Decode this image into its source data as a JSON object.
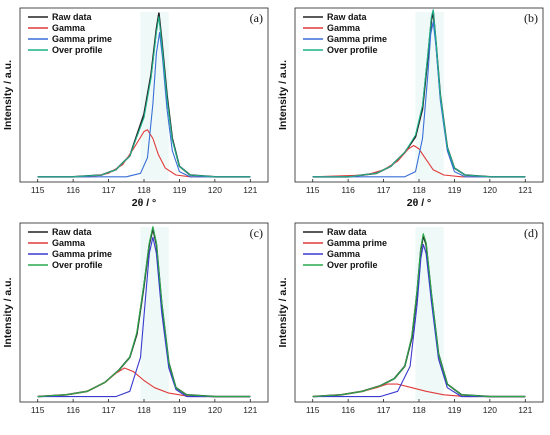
{
  "chart_data": [
    {
      "type": "line",
      "panel_label": "(a)",
      "xlabel": "2θ / °",
      "ylabel": "Intensity / a.u.",
      "xlim": [
        114.5,
        121.5
      ],
      "xticks": [
        "115",
        "116",
        "117",
        "118",
        "119",
        "120",
        "121"
      ],
      "legend_placement": "top-left",
      "series": [
        {
          "name": "Raw data",
          "color": "#222222",
          "points": [
            [
              115,
              0.03
            ],
            [
              116,
              0.03
            ],
            [
              116.8,
              0.04
            ],
            [
              117.2,
              0.07
            ],
            [
              117.6,
              0.15
            ],
            [
              118.0,
              0.39
            ],
            [
              118.2,
              0.62
            ],
            [
              118.35,
              0.88
            ],
            [
              118.42,
              0.97
            ],
            [
              118.5,
              0.82
            ],
            [
              118.65,
              0.5
            ],
            [
              118.8,
              0.25
            ],
            [
              119.0,
              0.09
            ],
            [
              119.3,
              0.04
            ],
            [
              120,
              0.03
            ],
            [
              121,
              0.03
            ]
          ]
        },
        {
          "name": "Gamma",
          "color": "#e03a3a",
          "points": [
            [
              115,
              0.03
            ],
            [
              116.5,
              0.03
            ],
            [
              117.0,
              0.05
            ],
            [
              117.4,
              0.1
            ],
            [
              117.7,
              0.19
            ],
            [
              118.0,
              0.29
            ],
            [
              118.1,
              0.3
            ],
            [
              118.25,
              0.25
            ],
            [
              118.4,
              0.16
            ],
            [
              118.6,
              0.08
            ],
            [
              118.9,
              0.04
            ],
            [
              119.3,
              0.03
            ],
            [
              121,
              0.03
            ]
          ]
        },
        {
          "name": "Gamma prime",
          "color": "#3a6fd8",
          "points": [
            [
              115,
              0.03
            ],
            [
              117.5,
              0.03
            ],
            [
              117.9,
              0.05
            ],
            [
              118.1,
              0.14
            ],
            [
              118.25,
              0.45
            ],
            [
              118.35,
              0.74
            ],
            [
              118.44,
              0.86
            ],
            [
              118.52,
              0.72
            ],
            [
              118.65,
              0.42
            ],
            [
              118.8,
              0.18
            ],
            [
              119.0,
              0.06
            ],
            [
              119.3,
              0.03
            ],
            [
              121,
              0.03
            ]
          ]
        },
        {
          "name": "Over profile",
          "color": "#1fb08a",
          "points": [
            [
              115,
              0.03
            ],
            [
              116,
              0.03
            ],
            [
              116.8,
              0.04
            ],
            [
              117.2,
              0.07
            ],
            [
              117.6,
              0.15
            ],
            [
              118.0,
              0.37
            ],
            [
              118.2,
              0.6
            ],
            [
              118.35,
              0.86
            ],
            [
              118.42,
              0.95
            ],
            [
              118.5,
              0.8
            ],
            [
              118.65,
              0.48
            ],
            [
              118.8,
              0.24
            ],
            [
              119.0,
              0.09
            ],
            [
              119.3,
              0.04
            ],
            [
              120,
              0.03
            ],
            [
              121,
              0.03
            ]
          ]
        }
      ]
    },
    {
      "type": "line",
      "panel_label": "(b)",
      "xlabel": "2θ / °",
      "ylabel": "Intensity / a.u.",
      "xlim": [
        114.5,
        121.5
      ],
      "xticks": [
        "115",
        "116",
        "117",
        "118",
        "119",
        "120",
        "121"
      ],
      "legend_placement": "top-left",
      "series": [
        {
          "name": "Raw data",
          "color": "#222222",
          "points": [
            [
              115,
              0.03
            ],
            [
              116,
              0.03
            ],
            [
              116.8,
              0.05
            ],
            [
              117.2,
              0.09
            ],
            [
              117.6,
              0.17
            ],
            [
              117.9,
              0.26
            ],
            [
              118.1,
              0.42
            ],
            [
              118.25,
              0.72
            ],
            [
              118.35,
              0.93
            ],
            [
              118.4,
              0.98
            ],
            [
              118.48,
              0.8
            ],
            [
              118.6,
              0.5
            ],
            [
              118.8,
              0.2
            ],
            [
              119.0,
              0.08
            ],
            [
              119.3,
              0.04
            ],
            [
              120,
              0.03
            ],
            [
              121,
              0.03
            ]
          ]
        },
        {
          "name": "Gamma",
          "color": "#e03a3a",
          "points": [
            [
              115,
              0.03
            ],
            [
              116.5,
              0.04
            ],
            [
              117.0,
              0.07
            ],
            [
              117.4,
              0.12
            ],
            [
              117.7,
              0.19
            ],
            [
              117.85,
              0.21
            ],
            [
              118.0,
              0.19
            ],
            [
              118.2,
              0.13
            ],
            [
              118.4,
              0.07
            ],
            [
              118.7,
              0.04
            ],
            [
              119.2,
              0.03
            ],
            [
              121,
              0.03
            ]
          ]
        },
        {
          "name": "Gamma prime",
          "color": "#3a6fd8",
          "points": [
            [
              115,
              0.03
            ],
            [
              117.6,
              0.03
            ],
            [
              117.9,
              0.06
            ],
            [
              118.1,
              0.25
            ],
            [
              118.25,
              0.62
            ],
            [
              118.33,
              0.85
            ],
            [
              118.4,
              0.92
            ],
            [
              118.48,
              0.78
            ],
            [
              118.6,
              0.47
            ],
            [
              118.8,
              0.18
            ],
            [
              119.0,
              0.06
            ],
            [
              119.3,
              0.03
            ],
            [
              121,
              0.03
            ]
          ]
        },
        {
          "name": "Over profile",
          "color": "#1fb08a",
          "points": [
            [
              115,
              0.03
            ],
            [
              116,
              0.03
            ],
            [
              116.8,
              0.05
            ],
            [
              117.2,
              0.09
            ],
            [
              117.6,
              0.17
            ],
            [
              117.9,
              0.27
            ],
            [
              118.1,
              0.44
            ],
            [
              118.25,
              0.74
            ],
            [
              118.35,
              0.95
            ],
            [
              118.4,
              0.99
            ],
            [
              118.48,
              0.81
            ],
            [
              118.6,
              0.5
            ],
            [
              118.8,
              0.2
            ],
            [
              119.0,
              0.08
            ],
            [
              119.3,
              0.04
            ],
            [
              120,
              0.03
            ],
            [
              121,
              0.03
            ]
          ]
        }
      ]
    },
    {
      "type": "line",
      "panel_label": "(c)",
      "xlabel": "",
      "ylabel": "Intensity / a.u.",
      "xlim": [
        114.5,
        121.5
      ],
      "xticks": [
        "115",
        "116",
        "117",
        "118",
        "119",
        "120",
        "121"
      ],
      "legend_placement": "top-left",
      "series": [
        {
          "name": "Raw data",
          "color": "#222222",
          "points": [
            [
              115,
              0.03
            ],
            [
              115.8,
              0.04
            ],
            [
              116.4,
              0.06
            ],
            [
              116.9,
              0.11
            ],
            [
              117.3,
              0.18
            ],
            [
              117.6,
              0.25
            ],
            [
              117.8,
              0.38
            ],
            [
              118.0,
              0.65
            ],
            [
              118.15,
              0.88
            ],
            [
              118.25,
              0.97
            ],
            [
              118.35,
              0.88
            ],
            [
              118.5,
              0.55
            ],
            [
              118.7,
              0.22
            ],
            [
              118.9,
              0.08
            ],
            [
              119.2,
              0.04
            ],
            [
              120,
              0.03
            ],
            [
              121,
              0.03
            ]
          ]
        },
        {
          "name": "Gamma",
          "color": "#e03a3a",
          "points": [
            [
              115,
              0.03
            ],
            [
              115.8,
              0.04
            ],
            [
              116.4,
              0.06
            ],
            [
              116.9,
              0.11
            ],
            [
              117.2,
              0.16
            ],
            [
              117.45,
              0.19
            ],
            [
              117.7,
              0.17
            ],
            [
              118.0,
              0.12
            ],
            [
              118.3,
              0.08
            ],
            [
              118.7,
              0.05
            ],
            [
              119.3,
              0.03
            ],
            [
              121,
              0.03
            ]
          ]
        },
        {
          "name": "Gamma prime",
          "color": "#3a3ad0",
          "points": [
            [
              115,
              0.03
            ],
            [
              117.2,
              0.03
            ],
            [
              117.6,
              0.06
            ],
            [
              117.9,
              0.25
            ],
            [
              118.05,
              0.6
            ],
            [
              118.15,
              0.83
            ],
            [
              118.25,
              0.92
            ],
            [
              118.35,
              0.83
            ],
            [
              118.5,
              0.5
            ],
            [
              118.7,
              0.19
            ],
            [
              118.9,
              0.07
            ],
            [
              119.2,
              0.03
            ],
            [
              121,
              0.03
            ]
          ]
        },
        {
          "name": "Over profile",
          "color": "#2aa84a",
          "points": [
            [
              115,
              0.03
            ],
            [
              115.8,
              0.04
            ],
            [
              116.4,
              0.06
            ],
            [
              116.9,
              0.11
            ],
            [
              117.3,
              0.18
            ],
            [
              117.6,
              0.25
            ],
            [
              117.8,
              0.39
            ],
            [
              118.0,
              0.66
            ],
            [
              118.15,
              0.89
            ],
            [
              118.25,
              0.98
            ],
            [
              118.35,
              0.89
            ],
            [
              118.5,
              0.56
            ],
            [
              118.7,
              0.22
            ],
            [
              118.9,
              0.08
            ],
            [
              119.2,
              0.04
            ],
            [
              120,
              0.03
            ],
            [
              121,
              0.03
            ]
          ]
        }
      ]
    },
    {
      "type": "line",
      "panel_label": "(d)",
      "xlabel": "",
      "ylabel": "Intensity / a.u.",
      "xlim": [
        114.5,
        121.5
      ],
      "xticks": [
        "115",
        "116",
        "117",
        "118",
        "119",
        "120",
        "121"
      ],
      "legend_placement": "top-left",
      "series": [
        {
          "name": "Raw data",
          "color": "#222222",
          "points": [
            [
              115,
              0.03
            ],
            [
              115.8,
              0.04
            ],
            [
              116.4,
              0.06
            ],
            [
              116.9,
              0.09
            ],
            [
              117.3,
              0.13
            ],
            [
              117.6,
              0.2
            ],
            [
              117.8,
              0.36
            ],
            [
              117.95,
              0.62
            ],
            [
              118.05,
              0.85
            ],
            [
              118.12,
              0.93
            ],
            [
              118.2,
              0.88
            ],
            [
              118.35,
              0.6
            ],
            [
              118.55,
              0.27
            ],
            [
              118.8,
              0.1
            ],
            [
              119.2,
              0.04
            ],
            [
              120,
              0.03
            ],
            [
              121,
              0.03
            ]
          ]
        },
        {
          "name": "Gamma prime",
          "color": "#e03a3a",
          "points": [
            [
              115,
              0.03
            ],
            [
              115.8,
              0.04
            ],
            [
              116.4,
              0.06
            ],
            [
              116.8,
              0.08
            ],
            [
              117.1,
              0.1
            ],
            [
              117.4,
              0.1
            ],
            [
              117.8,
              0.08
            ],
            [
              118.2,
              0.06
            ],
            [
              118.7,
              0.04
            ],
            [
              119.3,
              0.03
            ],
            [
              121,
              0.03
            ]
          ]
        },
        {
          "name": "Gamma",
          "color": "#3a3ad0",
          "points": [
            [
              115,
              0.03
            ],
            [
              116.9,
              0.03
            ],
            [
              117.4,
              0.06
            ],
            [
              117.75,
              0.2
            ],
            [
              117.95,
              0.55
            ],
            [
              118.05,
              0.8
            ],
            [
              118.12,
              0.88
            ],
            [
              118.2,
              0.83
            ],
            [
              118.35,
              0.56
            ],
            [
              118.55,
              0.24
            ],
            [
              118.8,
              0.08
            ],
            [
              119.2,
              0.03
            ],
            [
              121,
              0.03
            ]
          ]
        },
        {
          "name": "Over profile",
          "color": "#2aa84a",
          "points": [
            [
              115,
              0.03
            ],
            [
              115.8,
              0.04
            ],
            [
              116.4,
              0.06
            ],
            [
              116.9,
              0.09
            ],
            [
              117.3,
              0.13
            ],
            [
              117.6,
              0.2
            ],
            [
              117.8,
              0.37
            ],
            [
              117.95,
              0.63
            ],
            [
              118.05,
              0.86
            ],
            [
              118.12,
              0.94
            ],
            [
              118.2,
              0.89
            ],
            [
              118.35,
              0.61
            ],
            [
              118.55,
              0.27
            ],
            [
              118.8,
              0.1
            ],
            [
              119.2,
              0.04
            ],
            [
              120,
              0.03
            ],
            [
              121,
              0.03
            ]
          ]
        }
      ]
    }
  ]
}
